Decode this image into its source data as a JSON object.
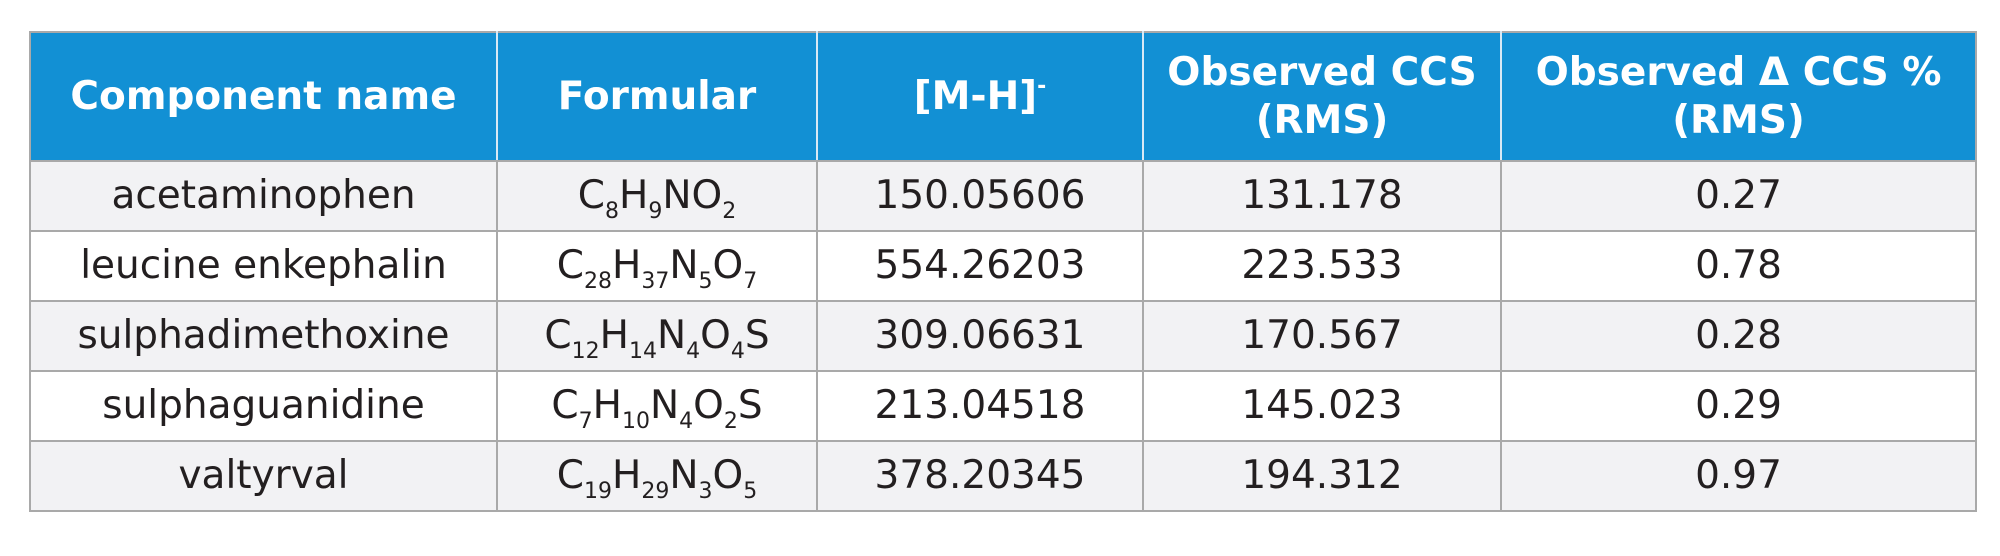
{
  "table": {
    "headers": {
      "component_name": "Component name",
      "formular": "Formular",
      "mh_base": "[M-H]",
      "mh_charge": "-",
      "observed_ccs_line1": "Observed CCS",
      "observed_ccs_line2": "(RMS)",
      "observed_delta_line1": "Observed Δ CCS %",
      "observed_delta_line2": "(RMS)"
    },
    "rows": [
      {
        "component": "acetaminophen",
        "formula": [
          {
            "t": "C"
          },
          {
            "t": "8",
            "sub": true
          },
          {
            "t": "H"
          },
          {
            "t": "9",
            "sub": true
          },
          {
            "t": "NO"
          },
          {
            "t": "2",
            "sub": true
          }
        ],
        "mh": "150.05606",
        "ccs": "131.178",
        "delta": "0.27"
      },
      {
        "component": "leucine enkephalin",
        "formula": [
          {
            "t": "C"
          },
          {
            "t": "28",
            "sub": true
          },
          {
            "t": "H"
          },
          {
            "t": "37",
            "sub": true
          },
          {
            "t": "N"
          },
          {
            "t": "5",
            "sub": true
          },
          {
            "t": "O"
          },
          {
            "t": "7",
            "sub": true
          }
        ],
        "mh": "554.26203",
        "ccs": "223.533",
        "delta": "0.78"
      },
      {
        "component": "sulphadimethoxine",
        "formula": [
          {
            "t": "C"
          },
          {
            "t": "12",
            "sub": true
          },
          {
            "t": "H"
          },
          {
            "t": "14",
            "sub": true
          },
          {
            "t": "N"
          },
          {
            "t": "4",
            "sub": true
          },
          {
            "t": "O"
          },
          {
            "t": "4",
            "sub": true
          },
          {
            "t": "S"
          }
        ],
        "mh": "309.06631",
        "ccs": "170.567",
        "delta": "0.28"
      },
      {
        "component": "sulphaguanidine",
        "formula": [
          {
            "t": "C"
          },
          {
            "t": "7",
            "sub": true
          },
          {
            "t": "H"
          },
          {
            "t": "10",
            "sub": true
          },
          {
            "t": "N"
          },
          {
            "t": "4",
            "sub": true
          },
          {
            "t": "O"
          },
          {
            "t": "2",
            "sub": true
          },
          {
            "t": "S"
          }
        ],
        "mh": "213.04518",
        "ccs": "145.023",
        "delta": "0.29"
      },
      {
        "component": "valtyrval",
        "formula": [
          {
            "t": "C"
          },
          {
            "t": "19",
            "sub": true
          },
          {
            "t": "H"
          },
          {
            "t": "29",
            "sub": true
          },
          {
            "t": "N"
          },
          {
            "t": "3",
            "sub": true
          },
          {
            "t": "O"
          },
          {
            "t": "5",
            "sub": true
          }
        ],
        "mh": "378.20345",
        "ccs": "194.312",
        "delta": "0.97"
      }
    ]
  },
  "colors": {
    "header_background": "#1290d4",
    "header_text": "#ffffff",
    "shaded_row": "#f2f2f4",
    "grid_line": "#a9a9a9"
  }
}
